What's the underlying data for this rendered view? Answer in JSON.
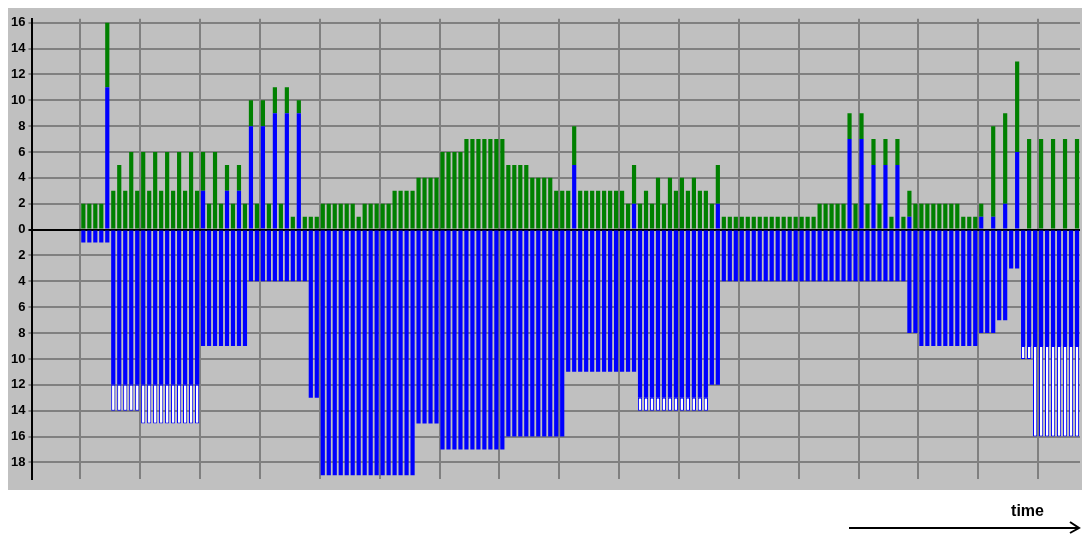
{
  "chart_data": {
    "type": "bar",
    "stacked": true,
    "grid": true,
    "tick_labels": "y",
    "annotations": [
      "time"
    ],
    "categories": [
      null,
      null,
      null,
      null,
      null,
      null,
      null,
      null,
      null,
      null,
      null,
      null,
      null,
      null,
      null,
      null,
      null,
      null,
      null,
      null,
      null,
      null,
      null,
      null,
      null,
      null,
      null,
      null,
      null,
      null,
      null,
      null,
      null,
      null,
      null,
      null,
      null,
      null,
      null,
      null,
      null,
      null,
      null,
      null,
      null,
      null,
      null,
      null,
      null,
      null,
      null,
      null,
      null,
      null,
      null,
      null,
      null,
      null,
      null,
      null,
      null,
      null,
      null,
      null,
      null,
      null,
      null,
      null,
      null,
      null,
      null,
      null,
      null,
      null,
      null,
      null,
      null,
      null,
      null,
      null,
      null,
      null,
      null,
      null,
      null,
      null,
      null,
      null,
      null,
      null,
      null,
      null,
      null,
      null,
      null,
      null,
      null,
      null,
      null,
      null,
      null,
      null,
      null,
      null,
      null,
      null,
      null,
      null,
      null,
      null,
      null,
      null,
      null,
      null,
      null,
      null,
      null,
      null,
      null,
      null,
      null,
      null,
      null,
      null,
      null,
      null,
      null,
      null,
      null,
      null,
      null,
      null,
      null,
      null,
      null,
      null,
      null,
      null,
      null,
      null,
      null,
      null,
      null,
      null,
      null,
      null,
      null,
      null,
      null,
      null,
      null,
      null,
      null,
      null,
      null,
      null,
      null,
      null,
      null,
      null,
      null,
      null,
      null,
      null,
      null,
      null,
      null,
      null,
      null,
      null,
      null,
      null,
      null,
      null,
      null
    ],
    "ylim": [
      -19.3,
      16.3
    ],
    "yticks": [
      {
        "value": 16,
        "label": "16"
      },
      {
        "value": 14,
        "label": "14"
      },
      {
        "value": 12,
        "label": "12"
      },
      {
        "value": 10,
        "label": "10"
      },
      {
        "value": 8,
        "label": "8"
      },
      {
        "value": 6,
        "label": "6"
      },
      {
        "value": 4,
        "label": "4"
      },
      {
        "value": 2,
        "label": "2"
      },
      {
        "value": 0,
        "label": "0"
      },
      {
        "value": -2,
        "label": "2"
      },
      {
        "value": -4,
        "label": "4"
      },
      {
        "value": -6,
        "label": "6"
      },
      {
        "value": -8,
        "label": "8"
      },
      {
        "value": -10,
        "label": "10"
      },
      {
        "value": -12,
        "label": "12"
      },
      {
        "value": -14,
        "label": "14"
      },
      {
        "value": -16,
        "label": "16"
      },
      {
        "value": -18,
        "label": "18"
      }
    ],
    "series": [
      {
        "color": "#0000ff",
        "values": [
          null,
          null,
          null,
          null,
          null,
          null,
          null,
          null,
          null,
          null,
          null,
          null,
          11,
          null,
          null,
          null,
          null,
          null,
          null,
          null,
          null,
          null,
          null,
          null,
          null,
          null,
          null,
          null,
          3,
          null,
          null,
          null,
          3,
          null,
          3,
          null,
          8,
          null,
          8,
          null,
          9,
          null,
          9,
          null,
          9,
          null,
          null,
          null,
          null,
          null,
          null,
          null,
          null,
          null,
          null,
          null,
          null,
          null,
          null,
          null,
          null,
          null,
          null,
          null,
          null,
          null,
          null,
          null,
          null,
          null,
          null,
          null,
          null,
          null,
          null,
          null,
          null,
          null,
          null,
          null,
          null,
          null,
          null,
          null,
          null,
          null,
          null,
          null,
          null,
          null,
          5,
          null,
          null,
          null,
          null,
          null,
          null,
          null,
          null,
          null,
          2,
          null,
          null,
          null,
          null,
          null,
          null,
          null,
          null,
          null,
          null,
          null,
          null,
          null,
          2,
          null,
          null,
          null,
          null,
          null,
          null,
          null,
          null,
          null,
          null,
          null,
          null,
          null,
          null,
          null,
          null,
          null,
          null,
          null,
          null,
          null,
          7,
          null,
          7,
          null,
          5,
          null,
          5,
          null,
          5,
          null,
          1,
          null,
          null,
          null,
          null,
          null,
          null,
          null,
          null,
          null,
          null,
          null,
          1,
          null,
          1,
          null,
          2,
          null,
          6,
          null,
          null,
          null,
          null,
          null,
          null,
          null,
          null,
          null,
          null
        ]
      },
      {
        "color": "#008000",
        "values": [
          null,
          null,
          null,
          null,
          null,
          null,
          null,
          null,
          2,
          2,
          2,
          2,
          5,
          3,
          5,
          3,
          6,
          3,
          6,
          3,
          6,
          3,
          6,
          3,
          6,
          3,
          6,
          3,
          3,
          2,
          6,
          2,
          2,
          2,
          2,
          2,
          2,
          2,
          2,
          2,
          2,
          2,
          2,
          1,
          1,
          1,
          1,
          1,
          2,
          2,
          2,
          2,
          2,
          2,
          1,
          2,
          2,
          2,
          2,
          2,
          3,
          3,
          3,
          3,
          4,
          4,
          4,
          4,
          6,
          6,
          6,
          6,
          7,
          7,
          7,
          7,
          7,
          7,
          7,
          5,
          5,
          5,
          5,
          4,
          4,
          4,
          4,
          3,
          3,
          3,
          3,
          3,
          3,
          3,
          3,
          3,
          3,
          3,
          3,
          2,
          3,
          2,
          3,
          2,
          4,
          2,
          4,
          3,
          4,
          3,
          4,
          3,
          3,
          2,
          3,
          1,
          1,
          1,
          1,
          1,
          1,
          1,
          1,
          1,
          1,
          1,
          1,
          1,
          1,
          1,
          1,
          2,
          2,
          2,
          2,
          2,
          2,
          2,
          2,
          2,
          2,
          2,
          2,
          1,
          2,
          1,
          2,
          2,
          2,
          2,
          2,
          2,
          2,
          2,
          2,
          1,
          1,
          1,
          1,
          null,
          7,
          null,
          7,
          null,
          7,
          null,
          7,
          null,
          7,
          null,
          7,
          null,
          7,
          null,
          7
        ]
      },
      {
        "color": "#0000ff",
        "values": [
          null,
          null,
          null,
          null,
          null,
          null,
          null,
          null,
          -1,
          -1,
          -1,
          -1,
          -1,
          -12,
          -12,
          -12,
          -12,
          -12,
          -12,
          -12,
          -12,
          -12,
          -12,
          -12,
          -12,
          -12,
          -12,
          -12,
          -9,
          -9,
          -9,
          -9,
          -9,
          -9,
          -9,
          -9,
          -4,
          -4,
          -4,
          -4,
          -4,
          -4,
          -4,
          -4,
          -4,
          -4,
          -13,
          -13,
          -19,
          -19,
          -19,
          -19,
          -19,
          -19,
          -19,
          -19,
          -19,
          -19,
          -19,
          -19,
          -19,
          -19,
          -19,
          -19,
          -15,
          -15,
          -15,
          -15,
          -17,
          -17,
          -17,
          -17,
          -17,
          -17,
          -17,
          -17,
          -17,
          -17,
          -17,
          -16,
          -16,
          -16,
          -16,
          -16,
          -16,
          -16,
          -16,
          -16,
          -16,
          -11,
          -11,
          -11,
          -11,
          -11,
          -11,
          -11,
          -11,
          -11,
          -11,
          -11,
          -11,
          -13,
          -13,
          -13,
          -13,
          -13,
          -13,
          -13,
          -13,
          -13,
          -13,
          -13,
          -13,
          -12,
          -12,
          -4,
          -4,
          -4,
          -4,
          -4,
          -4,
          -4,
          -4,
          -4,
          -4,
          -4,
          -4,
          -4,
          -4,
          -4,
          -4,
          -4,
          -4,
          -4,
          -4,
          -4,
          -4,
          -4,
          -4,
          -4,
          -4,
          -4,
          -4,
          -4,
          -4,
          -4,
          -8,
          -8,
          -9,
          -9,
          -9,
          -9,
          -9,
          -9,
          -9,
          -9,
          -9,
          -9,
          -8,
          -8,
          -8,
          -7,
          -7,
          -3,
          -3,
          -9,
          -9,
          -9,
          -9,
          -9,
          -9,
          -9,
          -9,
          -9,
          -9
        ]
      },
      {
        "color": "#ffffff",
        "values": [
          null,
          null,
          null,
          null,
          null,
          null,
          null,
          null,
          null,
          null,
          null,
          null,
          null,
          -2,
          -2,
          -2,
          -2,
          -2,
          -3,
          -3,
          -3,
          -3,
          -3,
          -3,
          -3,
          -3,
          -3,
          -3,
          null,
          null,
          null,
          null,
          null,
          null,
          null,
          null,
          null,
          null,
          null,
          null,
          null,
          null,
          null,
          null,
          null,
          null,
          null,
          null,
          null,
          null,
          null,
          null,
          null,
          null,
          null,
          null,
          null,
          null,
          null,
          null,
          null,
          null,
          null,
          null,
          null,
          null,
          null,
          null,
          null,
          null,
          null,
          null,
          null,
          null,
          null,
          null,
          null,
          null,
          null,
          null,
          null,
          null,
          null,
          null,
          null,
          null,
          null,
          null,
          null,
          null,
          null,
          null,
          null,
          null,
          null,
          null,
          null,
          null,
          null,
          null,
          null,
          -1,
          -1,
          -1,
          -1,
          -1,
          -1,
          -1,
          -1,
          -1,
          -1,
          -1,
          -1,
          null,
          null,
          null,
          null,
          null,
          null,
          null,
          null,
          null,
          null,
          null,
          null,
          null,
          null,
          null,
          null,
          null,
          null,
          null,
          null,
          null,
          null,
          null,
          null,
          null,
          null,
          null,
          null,
          null,
          null,
          null,
          null,
          null,
          null,
          null,
          null,
          null,
          null,
          null,
          null,
          null,
          null,
          null,
          null,
          null,
          null,
          null,
          null,
          null,
          null,
          null,
          null,
          -1,
          -1,
          -7,
          -7,
          -7,
          -7,
          -7,
          -7,
          -7,
          -7
        ]
      }
    ]
  }
}
